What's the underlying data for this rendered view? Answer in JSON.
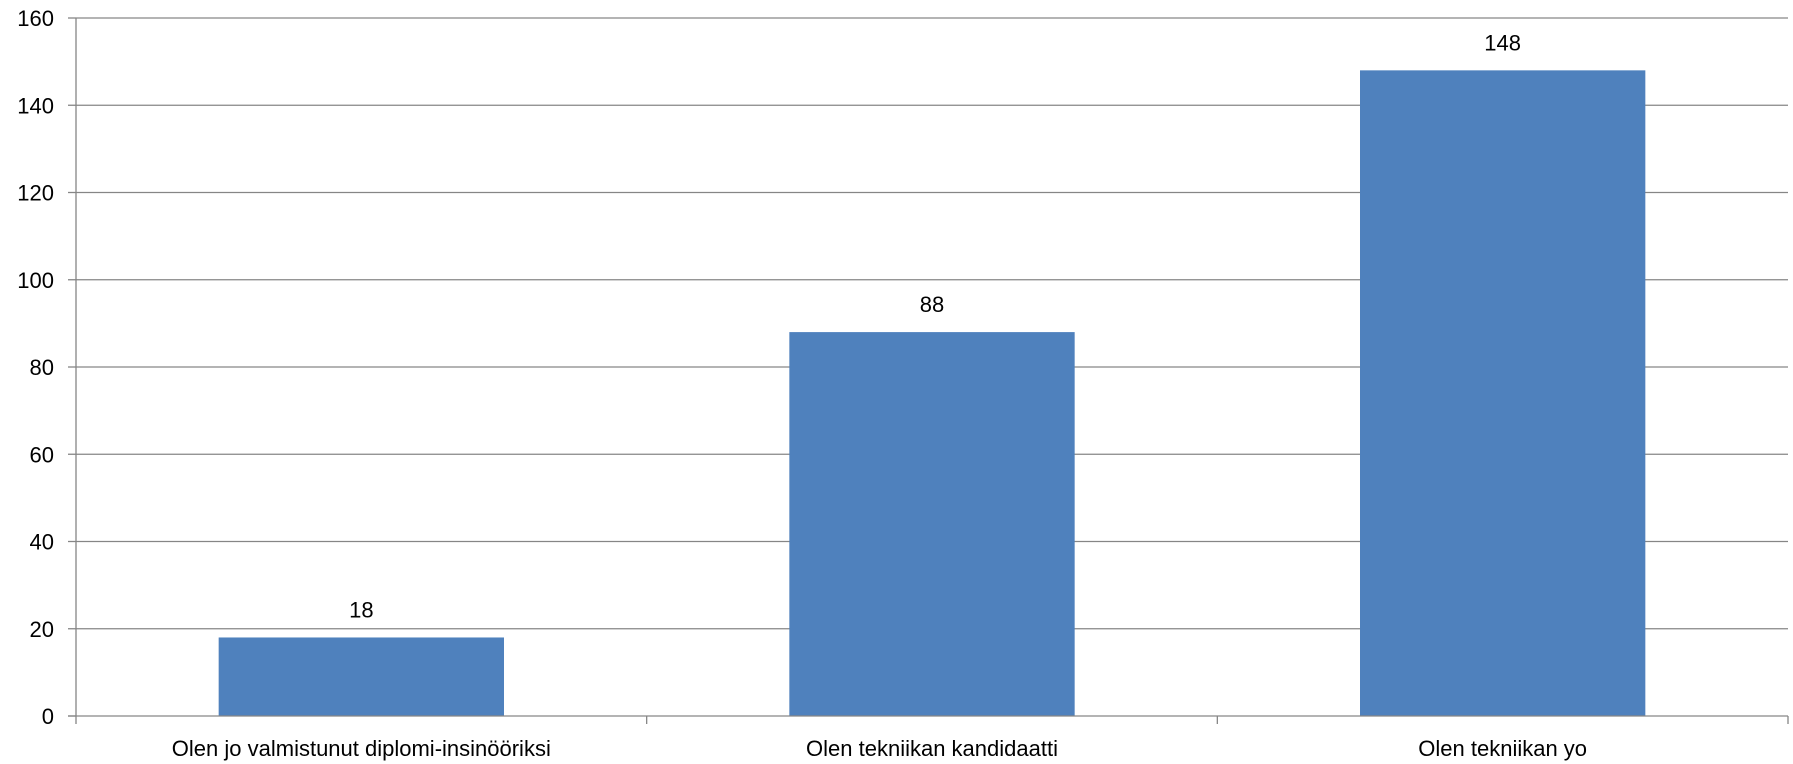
{
  "chart_data": {
    "type": "bar",
    "categories": [
      "Olen jo valmistunut diplomi-insinööriksi",
      "Olen tekniikan kandidaatti",
      "Olen tekniikan yo"
    ],
    "values": [
      18,
      88,
      148
    ],
    "data_labels": [
      "18",
      "88",
      "148"
    ],
    "ylim": [
      0,
      160
    ],
    "yticks": [
      "0",
      "20",
      "40",
      "60",
      "80",
      "100",
      "120",
      "140",
      "160"
    ],
    "grid": true,
    "bar_color": "#4F81BD",
    "title": "",
    "xlabel": "",
    "ylabel": ""
  }
}
